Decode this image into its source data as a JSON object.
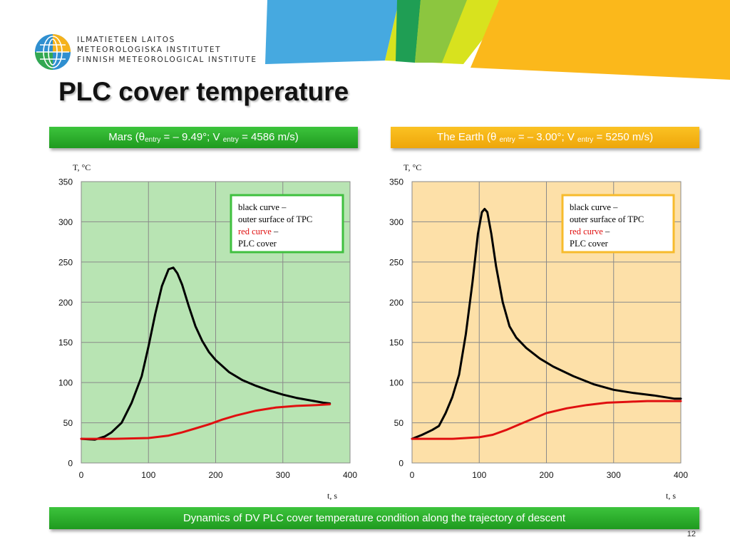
{
  "org_lines": [
    "ILMATIETEEN LAITOS",
    "METEOROLOGISKA INSTITUTET",
    "FINNISH METEOROLOGICAL INSTITUTE"
  ],
  "slide_title": "PLC cover temperature",
  "mars_header": {
    "name": "Mars",
    "theta_sym": "θ",
    "sub_entry": "entry",
    "theta_val": " = – 9.49°",
    "v_sym": "V ",
    "v_val": " = 4586 m/s"
  },
  "earth_header": {
    "name": "The Earth",
    "theta_sym": "θ ",
    "sub_entry": "entry",
    "theta_val": " = – 3.00°",
    "v_sym": "V ",
    "v_val": " = 5250 m/s"
  },
  "footer_text": "Dynamics of DV PLC cover temperature condition along the trajectory of descent",
  "page_number": "12",
  "colors": {
    "mars_panel": "#b8e4b3",
    "earth_panel": "#fde0a8",
    "mars_border": "#3fc03f",
    "earth_border": "#f7bb2c",
    "black_curve": "#000000",
    "red_curve": "#e01010"
  },
  "chart_data": [
    {
      "type": "line",
      "panel": "mars",
      "ylabel": "T, °C",
      "xlabel": "t, s",
      "xlim": [
        0,
        400
      ],
      "ylim": [
        0,
        350
      ],
      "xticks": [
        0,
        100,
        200,
        300,
        400
      ],
      "yticks": [
        0,
        50,
        100,
        150,
        200,
        250,
        300,
        350
      ],
      "grid": true,
      "legend_position": "top-right",
      "legend_lines": [
        {
          "text": "black curve –",
          "color": "#000000"
        },
        {
          "text": "outer surface of TPC",
          "color": "#000000"
        },
        {
          "text": "red curve",
          "color": "#e01010",
          "suffix": " –"
        },
        {
          "text": "PLC cover",
          "color": "#000000"
        }
      ],
      "series": [
        {
          "name": "black curve",
          "color": "#000000",
          "x": [
            0,
            20,
            35,
            45,
            60,
            75,
            90,
            100,
            110,
            120,
            130,
            137,
            143,
            150,
            160,
            170,
            180,
            190,
            200,
            220,
            240,
            260,
            280,
            300,
            320,
            340,
            360,
            370
          ],
          "y": [
            30,
            29,
            33,
            38,
            50,
            75,
            108,
            145,
            185,
            220,
            241,
            243,
            236,
            222,
            195,
            170,
            152,
            138,
            128,
            113,
            103,
            96,
            90,
            85,
            81,
            78,
            75,
            74
          ]
        },
        {
          "name": "red curve",
          "color": "#e01010",
          "x": [
            0,
            50,
            100,
            130,
            150,
            170,
            190,
            210,
            230,
            260,
            290,
            320,
            350,
            370
          ],
          "y": [
            30,
            30,
            31,
            34,
            38,
            43,
            48,
            54,
            59,
            65,
            69,
            71,
            72,
            73
          ]
        }
      ]
    },
    {
      "type": "line",
      "panel": "earth",
      "ylabel": "T, °C",
      "xlabel": "t, s",
      "xlim": [
        0,
        400
      ],
      "ylim": [
        0,
        350
      ],
      "xticks": [
        0,
        100,
        200,
        300,
        400
      ],
      "yticks": [
        0,
        50,
        100,
        150,
        200,
        250,
        300,
        350
      ],
      "grid": true,
      "legend_position": "top-right",
      "legend_lines": [
        {
          "text": "black curve –",
          "color": "#000000"
        },
        {
          "text": "outer surface of TPC",
          "color": "#000000"
        },
        {
          "text": "red curve",
          "color": "#e01010",
          "suffix": " –"
        },
        {
          "text": "PLC cover",
          "color": "#000000"
        }
      ],
      "series": [
        {
          "name": "black curve",
          "color": "#000000",
          "x": [
            0,
            15,
            30,
            40,
            50,
            60,
            70,
            80,
            90,
            98,
            104,
            108,
            112,
            118,
            125,
            135,
            145,
            155,
            170,
            190,
            210,
            240,
            270,
            300,
            330,
            360,
            390,
            400
          ],
          "y": [
            30,
            35,
            41,
            46,
            62,
            82,
            110,
            160,
            225,
            285,
            312,
            316,
            312,
            285,
            245,
            200,
            170,
            156,
            143,
            130,
            120,
            108,
            98,
            91,
            87,
            84,
            80,
            80
          ]
        },
        {
          "name": "red curve",
          "color": "#e01010",
          "x": [
            0,
            60,
            100,
            120,
            140,
            160,
            180,
            200,
            230,
            260,
            290,
            320,
            350,
            380,
            400
          ],
          "y": [
            30,
            30,
            32,
            35,
            41,
            48,
            55,
            62,
            68,
            72,
            75,
            76,
            77,
            77,
            77
          ]
        }
      ]
    }
  ]
}
